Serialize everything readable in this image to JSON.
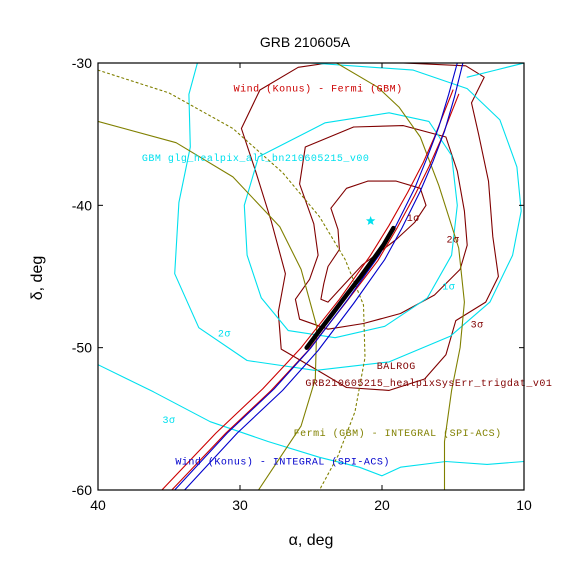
{
  "chart_data": {
    "type": "scatter",
    "title": "GRB 210605A",
    "xlabel": "α, deg",
    "ylabel": "δ, deg",
    "xlim": [
      40,
      10
    ],
    "ylim": [
      -60,
      -30
    ],
    "x_ticks": [
      40,
      30,
      20,
      10
    ],
    "y_ticks": [
      -30,
      -40,
      -50,
      -60
    ],
    "grid": false,
    "annotations": [
      {
        "text": "Wind (Konus) - Fermi (GBM)",
        "color": "#cc0000",
        "x": 24.5,
        "y": -32.0
      },
      {
        "text": "GBM glg_healpix_all_bn210605215_v00",
        "color": "#00e0ee",
        "x": 28.9,
        "y": -36.9
      },
      {
        "text": "1σ",
        "color": "#800000",
        "x": 17.8,
        "y": -41.1
      },
      {
        "text": "2σ",
        "color": "#800000",
        "x": 15.0,
        "y": -42.6
      },
      {
        "text": "1σ",
        "color": "#00e0ee",
        "x": 15.3,
        "y": -45.9
      },
      {
        "text": "3σ",
        "color": "#800000",
        "x": 13.3,
        "y": -48.6
      },
      {
        "text": "2σ",
        "color": "#00e0ee",
        "x": 31.1,
        "y": -49.2
      },
      {
        "text": "BALROG",
        "color": "#800000",
        "x": 19.0,
        "y": -51.5
      },
      {
        "text": "GRB210605215_healpixSysErr_trigdat_v01",
        "color": "#800000",
        "x": 16.7,
        "y": -52.7
      },
      {
        "text": "3σ",
        "color": "#00e0ee",
        "x": 35.0,
        "y": -55.3
      },
      {
        "text": "Fermi (GBM) - INTEGRAL (SPI-ACS)",
        "color": "#808000",
        "x": 18.9,
        "y": -56.2
      },
      {
        "text": "Wind (Konus) -  INTEGRAL (SPI-ACS)",
        "color": "#0000cc",
        "x": 27.0,
        "y": -58.2
      }
    ],
    "series": [
      {
        "kind": "star",
        "color": "#00e0ee",
        "points": [
          [
            20.8,
            -41.1
          ]
        ]
      },
      {
        "kind": "contour",
        "color": "#800000",
        "points": [
          [
            21.0,
            -38.3
          ],
          [
            19.0,
            -38.3
          ],
          [
            17.3,
            -38.8
          ],
          [
            16.9,
            -40.0
          ],
          [
            17.7,
            -41.2
          ],
          [
            19.0,
            -42.4
          ],
          [
            20.2,
            -43.3
          ],
          [
            21.4,
            -44.2
          ],
          [
            22.7,
            -45.6
          ],
          [
            23.8,
            -46.8
          ],
          [
            24.3,
            -46.6
          ],
          [
            24.1,
            -45.5
          ],
          [
            23.8,
            -44.3
          ],
          [
            23.0,
            -43.1
          ],
          [
            23.1,
            -41.7
          ],
          [
            23.6,
            -40.2
          ],
          [
            22.5,
            -38.8
          ],
          [
            21.0,
            -38.3
          ]
        ]
      },
      {
        "kind": "contour",
        "color": "#800000",
        "points": [
          [
            22.0,
            -34.5
          ],
          [
            18.5,
            -34.4
          ],
          [
            15.5,
            -35.2
          ],
          [
            14.7,
            -37.6
          ],
          [
            14.2,
            -40.4
          ],
          [
            14.0,
            -42.8
          ],
          [
            14.5,
            -44.5
          ],
          [
            16.3,
            -46.3
          ],
          [
            18.7,
            -47.6
          ],
          [
            21.3,
            -48.3
          ],
          [
            23.8,
            -48.7
          ],
          [
            25.8,
            -48.0
          ],
          [
            26.1,
            -46.6
          ],
          [
            25.1,
            -45.2
          ],
          [
            24.5,
            -43.5
          ],
          [
            24.8,
            -41.3
          ],
          [
            25.8,
            -38.5
          ],
          [
            25.4,
            -35.9
          ],
          [
            22.0,
            -34.5
          ]
        ]
      },
      {
        "kind": "contour",
        "color": "#800000",
        "points": [
          [
            23.8,
            -30.0
          ],
          [
            18.5,
            -30.0
          ],
          [
            14.1,
            -30.2
          ],
          [
            12.8,
            -31.0
          ],
          [
            13.7,
            -32.8
          ],
          [
            13.2,
            -35.0
          ],
          [
            12.5,
            -38.3
          ],
          [
            12.2,
            -42.2
          ],
          [
            11.8,
            -45.0
          ],
          [
            12.7,
            -46.8
          ],
          [
            14.8,
            -48.1
          ],
          [
            15.5,
            -50.5
          ],
          [
            17.0,
            -52.2
          ],
          [
            19.5,
            -53.0
          ],
          [
            22.5,
            -52.8
          ],
          [
            24.7,
            -51.5
          ],
          [
            27.1,
            -50.1
          ],
          [
            27.3,
            -47.5
          ],
          [
            26.8,
            -44.8
          ],
          [
            27.8,
            -41.1
          ],
          [
            28.9,
            -37.6
          ],
          [
            29.9,
            -34.6
          ],
          [
            28.6,
            -31.9
          ],
          [
            25.9,
            -30.3
          ],
          [
            23.8,
            -30.0
          ]
        ]
      },
      {
        "kind": "contour",
        "color": "#00e0ee",
        "points": [
          [
            28.7,
            -36.6
          ],
          [
            24.0,
            -34.2
          ],
          [
            19.5,
            -33.5
          ],
          [
            16.7,
            -34.1
          ],
          [
            15.1,
            -36.5
          ],
          [
            14.7,
            -40.0
          ],
          [
            15.1,
            -43.5
          ],
          [
            16.8,
            -46.5
          ],
          [
            19.8,
            -48.5
          ],
          [
            23.3,
            -49.3
          ],
          [
            26.6,
            -48.8
          ],
          [
            28.5,
            -46.5
          ],
          [
            29.5,
            -43.5
          ],
          [
            29.7,
            -40.0
          ],
          [
            28.7,
            -36.6
          ]
        ]
      },
      {
        "kind": "contour",
        "color": "#00e0ee",
        "points": [
          [
            33.0,
            -30.0
          ],
          [
            25.0,
            -30.0
          ],
          [
            17.8,
            -30.5
          ],
          [
            14.0,
            -31.8
          ],
          [
            11.7,
            -34.0
          ],
          [
            10.5,
            -37.3
          ],
          [
            10.2,
            -40.4
          ],
          [
            10.8,
            -43.5
          ],
          [
            12.4,
            -46.8
          ],
          [
            15.2,
            -49.2
          ],
          [
            19.5,
            -51.0
          ],
          [
            24.7,
            -51.6
          ],
          [
            29.5,
            -50.9
          ],
          [
            32.9,
            -48.6
          ],
          [
            34.6,
            -44.8
          ],
          [
            34.3,
            -39.8
          ],
          [
            33.5,
            -35.9
          ],
          [
            33.6,
            -32.2
          ],
          [
            33.0,
            -30.0
          ]
        ]
      },
      {
        "kind": "contour",
        "color": "#00e0ee",
        "points": [
          [
            40.0,
            -51.2
          ],
          [
            36.1,
            -53.1
          ],
          [
            32.1,
            -55.2
          ],
          [
            28.0,
            -56.6
          ],
          [
            24.4,
            -57.7
          ],
          [
            21.6,
            -58.4
          ],
          [
            20.0,
            -59.0
          ],
          [
            18.7,
            -58.4
          ],
          [
            15.5,
            -58.0
          ],
          [
            12.6,
            -58.2
          ],
          [
            10.0,
            -58.0
          ]
        ]
      },
      {
        "kind": "contour",
        "color": "#00e0ee",
        "points": [
          [
            10.0,
            -30.0
          ],
          [
            12.0,
            -30.5
          ],
          [
            14.0,
            -31.0
          ]
        ]
      },
      {
        "kind": "contour",
        "color": "#808000",
        "points": [
          [
            40.0,
            -34.1
          ],
          [
            34.5,
            -35.6
          ],
          [
            30.5,
            -38.0
          ],
          [
            27.2,
            -41.5
          ],
          [
            25.7,
            -44.5
          ],
          [
            24.6,
            -48.5
          ],
          [
            24.7,
            -52.2
          ],
          [
            25.7,
            -55.5
          ],
          [
            27.5,
            -58.2
          ],
          [
            28.7,
            -60.0
          ]
        ]
      },
      {
        "kind": "contour",
        "color": "#808000",
        "points": [
          [
            23.2,
            -30.0
          ],
          [
            20.3,
            -31.7
          ],
          [
            18.8,
            -33.1
          ],
          [
            17.3,
            -35.2
          ],
          [
            16.0,
            -38.6
          ],
          [
            14.6,
            -43.0
          ],
          [
            14.2,
            -46.8
          ],
          [
            14.5,
            -50.0
          ],
          [
            15.1,
            -53.0
          ],
          [
            15.6,
            -56.6
          ],
          [
            15.6,
            -60.0
          ]
        ]
      },
      {
        "kind": "dotted",
        "color": "#808000",
        "points": [
          [
            40.0,
            -30.5
          ],
          [
            35.0,
            -32.1
          ],
          [
            30.5,
            -34.6
          ],
          [
            27.0,
            -37.7
          ],
          [
            24.4,
            -40.8
          ],
          [
            22.6,
            -43.8
          ],
          [
            21.3,
            -47.0
          ],
          [
            21.2,
            -50.7
          ],
          [
            21.9,
            -54.5
          ],
          [
            23.1,
            -57.6
          ],
          [
            24.4,
            -60.0
          ]
        ]
      },
      {
        "kind": "line",
        "color": "#cc0000",
        "points": [
          [
            34.8,
            -60.0
          ],
          [
            31.0,
            -56.0
          ],
          [
            27.8,
            -53.0
          ],
          [
            25.2,
            -50.2
          ],
          [
            22.6,
            -46.9
          ],
          [
            20.3,
            -43.9
          ],
          [
            19.0,
            -41.7
          ],
          [
            17.7,
            -39.3
          ],
          [
            16.7,
            -37.3
          ],
          [
            15.9,
            -35.5
          ],
          [
            15.2,
            -33.7
          ],
          [
            14.6,
            -32.2
          ]
        ]
      },
      {
        "kind": "line",
        "color": "#cc0000",
        "points": [
          [
            35.5,
            -60.0
          ],
          [
            31.7,
            -56.0
          ],
          [
            28.4,
            -52.9
          ],
          [
            25.7,
            -50.0
          ],
          [
            23.0,
            -46.6
          ],
          [
            20.8,
            -43.5
          ],
          [
            19.5,
            -41.4
          ],
          [
            18.2,
            -39.1
          ],
          [
            17.1,
            -37.0
          ],
          [
            16.3,
            -35.2
          ],
          [
            15.6,
            -33.4
          ],
          [
            15.0,
            -31.9
          ]
        ]
      },
      {
        "kind": "line",
        "color": "#0000cc",
        "points": [
          [
            33.9,
            -60.0
          ],
          [
            30.2,
            -56.0
          ],
          [
            27.0,
            -53.0
          ],
          [
            24.5,
            -50.2
          ],
          [
            22.0,
            -46.9
          ],
          [
            19.8,
            -43.8
          ],
          [
            18.6,
            -41.6
          ],
          [
            17.3,
            -39.0
          ],
          [
            16.4,
            -36.9
          ],
          [
            15.6,
            -34.8
          ],
          [
            14.9,
            -32.4
          ],
          [
            14.3,
            -30.0
          ]
        ]
      },
      {
        "kind": "line",
        "color": "#0000cc",
        "points": [
          [
            34.6,
            -60.0
          ],
          [
            30.9,
            -56.0
          ],
          [
            27.6,
            -52.9
          ],
          [
            25.0,
            -50.0
          ],
          [
            22.4,
            -46.6
          ],
          [
            20.2,
            -43.5
          ],
          [
            19.0,
            -41.4
          ],
          [
            17.7,
            -38.8
          ],
          [
            16.8,
            -36.6
          ],
          [
            16.0,
            -34.5
          ],
          [
            15.3,
            -32.2
          ],
          [
            14.7,
            -30.0
          ]
        ]
      },
      {
        "kind": "thick",
        "color": "#000000",
        "points": [
          [
            25.3,
            -50.0
          ],
          [
            24.4,
            -48.8
          ],
          [
            23.4,
            -47.5
          ],
          [
            22.5,
            -46.3
          ],
          [
            21.5,
            -45.0
          ],
          [
            20.7,
            -43.9
          ],
          [
            19.9,
            -42.8
          ],
          [
            19.2,
            -41.6
          ]
        ]
      }
    ]
  }
}
